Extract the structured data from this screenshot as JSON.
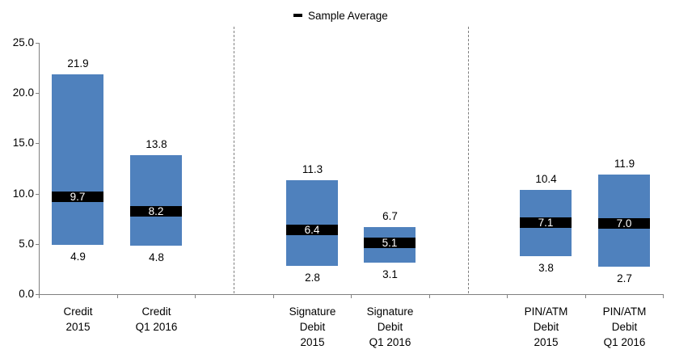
{
  "chart_data": {
    "type": "bar",
    "subtype": "floating_range_with_average_marker",
    "title": "",
    "legend_label": "Sample Average",
    "legend_position": "top-center",
    "xlabel": "",
    "ylabel": "",
    "ylim": [
      0,
      25
    ],
    "ytick_values": [
      0,
      5,
      10,
      15,
      20,
      25
    ],
    "ytick_labels": [
      "0.0",
      "5.0",
      "10.0",
      "15.0",
      "20.0",
      "25.0"
    ],
    "grid": false,
    "slots_total": 8,
    "separator_slots": [
      2,
      5
    ],
    "groups": [
      {
        "slot": 0,
        "label_lines": [
          "Credit",
          "2015"
        ],
        "min": 4.9,
        "max": 21.9,
        "average": 9.7
      },
      {
        "slot": 1,
        "label_lines": [
          "Credit",
          "Q1 2016"
        ],
        "min": 4.8,
        "max": 13.8,
        "average": 8.2
      },
      {
        "slot": 3,
        "label_lines": [
          "Signature",
          "Debit",
          "2015"
        ],
        "min": 2.8,
        "max": 11.3,
        "average": 6.4
      },
      {
        "slot": 4,
        "label_lines": [
          "Signature",
          "Debit",
          "Q1 2016"
        ],
        "min": 3.1,
        "max": 6.7,
        "average": 5.1
      },
      {
        "slot": 6,
        "label_lines": [
          "PIN/ATM",
          "Debit",
          "2015"
        ],
        "min": 3.8,
        "max": 10.4,
        "average": 7.1
      },
      {
        "slot": 7,
        "label_lines": [
          "PIN/ATM",
          "Debit",
          "Q1 2016"
        ],
        "min": 2.7,
        "max": 11.9,
        "average": 7.0
      }
    ],
    "colors": {
      "bar": "#4f81bd",
      "average_marker": "#000000",
      "average_text": "#ffffff",
      "axis": "#808080",
      "separator": "#7f7f7f",
      "text": "#000000"
    }
  }
}
